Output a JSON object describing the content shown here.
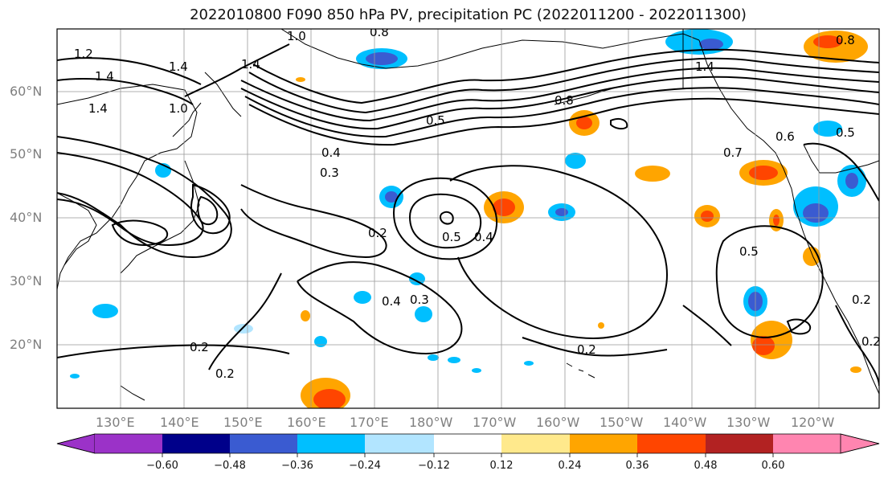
{
  "title": "2022010800 F090 850 hPa PV, precipitation PC (2022011200 - 2022011300)",
  "map": {
    "lat_ticks": [
      "60°N",
      "50°N",
      "40°N",
      "30°N",
      "20°N"
    ],
    "lon_ticks": [
      "130°E",
      "140°E",
      "150°E",
      "160°E",
      "170°E",
      "180°W",
      "170°W",
      "160°W",
      "150°W",
      "140°W",
      "130°W",
      "120°W"
    ]
  },
  "contour_labels": [
    "1.2",
    "1.4",
    "1.4",
    "1.4",
    "1.0",
    "1.4",
    "1.0",
    "0.8",
    "0.5",
    "0.4",
    "0.3",
    "0.5",
    "0.4",
    "0.2",
    "0.4",
    "0.3",
    "0.2",
    "0.2",
    "0.2",
    "0.8",
    "1.4",
    "0.5",
    "0.6",
    "0.5",
    "0.7",
    "0.8",
    "0.2",
    "0.2"
  ],
  "colorbar": {
    "labels": [
      "−0.60",
      "−0.48",
      "−0.36",
      "−0.24",
      "−0.12",
      "0.12",
      "0.24",
      "0.36",
      "0.48",
      "0.60"
    ],
    "colors": [
      "#9b32c8",
      "#00008a",
      "#3a5bd1",
      "#00bfff",
      "#b2e5ff",
      "#ffffff",
      "#ffe98c",
      "#ffa500",
      "#ff4500",
      "#b22222",
      "#ff85b0",
      "#ff85b0"
    ]
  }
}
